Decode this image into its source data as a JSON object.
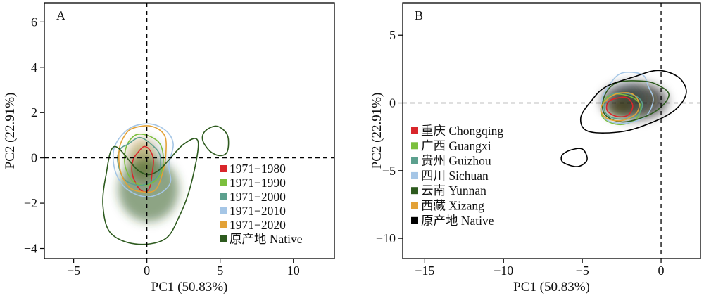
{
  "chart_data": [
    {
      "type": "scatter",
      "panel_label": "A",
      "xlabel": "PC1 (50.83%)",
      "ylabel": "PC2 (22.91%)",
      "xlim": [
        -7,
        12.8
      ],
      "ylim": [
        -4.45,
        6.85
      ],
      "x_ticks": [
        "−5",
        "0",
        "5",
        "10"
      ],
      "x_tick_values": [
        -5,
        0,
        5,
        10
      ],
      "y_ticks": [
        "6",
        "4",
        "2",
        "0",
        "−2",
        "−4"
      ],
      "y_tick_values": [
        6,
        4,
        2,
        0,
        -2,
        -4
      ],
      "reference_lines": {
        "x": 0,
        "y": 0,
        "style": "dashed"
      },
      "legend_position": "bottom-right",
      "series": [
        {
          "name": "1971−1980",
          "color": "#d9262b",
          "contour": [
            [
              -0.2,
              0.5
            ],
            [
              0.2,
              0.35
            ],
            [
              0.45,
              -0.1
            ],
            [
              0.35,
              -0.7
            ],
            [
              0.2,
              -1.3
            ],
            [
              -0.15,
              -1.5
            ],
            [
              -0.6,
              -1.3
            ],
            [
              -1.0,
              -0.7
            ],
            [
              -0.95,
              -0.1
            ],
            [
              -0.6,
              0.25
            ]
          ]
        },
        {
          "name": "1971−1990",
          "color": "#7bbf3d",
          "contour": [
            [
              -0.8,
              1.0
            ],
            [
              0.0,
              1.0
            ],
            [
              0.8,
              0.7
            ],
            [
              1.1,
              0.2
            ],
            [
              1.05,
              -0.5
            ],
            [
              0.6,
              -1.0
            ],
            [
              -0.2,
              -1.2
            ],
            [
              -1.0,
              -1.0
            ],
            [
              -1.5,
              -0.3
            ],
            [
              -1.4,
              0.5
            ]
          ]
        },
        {
          "name": "1971−2000",
          "color": "#5ca08e",
          "contour": [
            [
              -1.3,
              0.6
            ],
            [
              -0.5,
              0.9
            ],
            [
              0.3,
              0.6
            ],
            [
              0.9,
              0.1
            ],
            [
              0.8,
              -0.7
            ],
            [
              0.2,
              -1.1
            ],
            [
              -0.7,
              -1.2
            ],
            [
              -1.6,
              -0.9
            ],
            [
              -2.0,
              -0.1
            ],
            [
              -1.8,
              0.4
            ]
          ]
        },
        {
          "name": "1971−2010",
          "color": "#a5c6e6",
          "contour": [
            [
              -1.2,
              1.3
            ],
            [
              0.2,
              1.5
            ],
            [
              1.3,
              1.2
            ],
            [
              1.8,
              0.6
            ],
            [
              1.5,
              -0.3
            ],
            [
              1.6,
              -1.1
            ],
            [
              0.8,
              -1.6
            ],
            [
              -0.3,
              -1.7
            ],
            [
              -1.5,
              -1.3
            ],
            [
              -2.2,
              -0.5
            ],
            [
              -2.2,
              0.5
            ]
          ]
        },
        {
          "name": "1971−2020",
          "color": "#e3a237",
          "contour": [
            [
              -1.0,
              1.3
            ],
            [
              0.3,
              1.4
            ],
            [
              1.2,
              1.0
            ],
            [
              1.3,
              0.2
            ],
            [
              1.1,
              -0.6
            ],
            [
              0.6,
              -1.4
            ],
            [
              -0.3,
              -1.5
            ],
            [
              -1.2,
              -1.3
            ],
            [
              -1.8,
              -0.6
            ],
            [
              -1.9,
              0.3
            ],
            [
              -1.6,
              0.9
            ]
          ]
        },
        {
          "name": "原产地 Native",
          "color": "#2d5a1e",
          "contour": [
            [
              -2.2,
              0.5
            ],
            [
              -0.5,
              -0.6
            ],
            [
              0.7,
              -0.6
            ],
            [
              2.5,
              0.6
            ],
            [
              3.5,
              0.7
            ],
            [
              3.0,
              -1.2
            ],
            [
              2.2,
              -2.6
            ],
            [
              1.2,
              -3.6
            ],
            [
              -0.8,
              -3.8
            ],
            [
              -2.5,
              -3.3
            ],
            [
              -3.0,
              -2.1
            ],
            [
              -2.8,
              -0.8
            ]
          ],
          "extra_contours": [
            [
              [
                4.0,
                1.2
              ],
              [
                4.8,
                1.4
              ],
              [
                5.5,
                1.0
              ],
              [
                5.5,
                0.3
              ],
              [
                5.0,
                0.1
              ],
              [
                4.3,
                0.3
              ],
              [
                3.8,
                0.8
              ]
            ]
          ]
        }
      ]
    },
    {
      "type": "scatter",
      "panel_label": "B",
      "xlabel": "PC1 (50.83%)",
      "ylabel": "PC2 (22.91%)",
      "xlim": [
        -16.4,
        2.5
      ],
      "ylim": [
        -11.5,
        7.4
      ],
      "x_ticks": [
        "−15",
        "−10",
        "−5",
        "0"
      ],
      "x_tick_values": [
        -15,
        -10,
        -5,
        0
      ],
      "y_ticks": [
        "5",
        "0",
        "−5",
        "−10"
      ],
      "y_tick_values": [
        5,
        0,
        -5,
        -10
      ],
      "reference_lines": {
        "x": 0,
        "y": 0,
        "style": "dashed"
      },
      "legend_position": "left",
      "series": [
        {
          "name": "重庆 Chongqing",
          "color": "#d9262b",
          "contour": [
            [
              -3.0,
              0.3
            ],
            [
              -2.2,
              0.4
            ],
            [
              -1.8,
              -0.2
            ],
            [
              -2.1,
              -0.9
            ],
            [
              -2.8,
              -1.0
            ],
            [
              -3.4,
              -0.6
            ],
            [
              -3.4,
              0.0
            ]
          ]
        },
        {
          "name": "广西 Guangxi",
          "color": "#7bbf3d",
          "contour": [
            [
              -3.2,
              0.6
            ],
            [
              -2.0,
              0.5
            ],
            [
              -1.3,
              -0.2
            ],
            [
              -1.6,
              -1.2
            ],
            [
              -2.6,
              -1.6
            ],
            [
              -3.6,
              -1.2
            ],
            [
              -3.8,
              -0.3
            ]
          ]
        },
        {
          "name": "贵州 Guizhou",
          "color": "#5ca08e",
          "contour": [
            [
              -3.0,
              0.7
            ],
            [
              -1.8,
              0.6
            ],
            [
              -1.2,
              0.0
            ],
            [
              -1.5,
              -0.9
            ],
            [
              -2.5,
              -1.2
            ],
            [
              -3.4,
              -0.9
            ],
            [
              -3.6,
              -0.1
            ]
          ]
        },
        {
          "name": "四川 Sichuan",
          "color": "#a5c6e6",
          "contour": [
            [
              -2.5,
              2.2
            ],
            [
              -1.2,
              2.1
            ],
            [
              -0.8,
              1.2
            ],
            [
              -0.5,
              0.2
            ],
            [
              -1.0,
              -1.0
            ],
            [
              -2.3,
              -1.5
            ],
            [
              -3.5,
              -1.2
            ],
            [
              -3.8,
              0.0
            ],
            [
              -3.3,
              1.3
            ]
          ]
        },
        {
          "name": "云南 Yunnan",
          "color": "#2d5a1e",
          "contour": [
            [
              -2.8,
              1.5
            ],
            [
              -1.0,
              1.6
            ],
            [
              0.0,
              1.2
            ],
            [
              0.5,
              0.6
            ],
            [
              0.0,
              -0.3
            ],
            [
              -1.0,
              -1.0
            ],
            [
              -2.5,
              -1.4
            ],
            [
              -3.6,
              -0.8
            ],
            [
              -3.6,
              0.5
            ]
          ]
        },
        {
          "name": "西藏 Xizang",
          "color": "#e3a237",
          "contour": [
            [
              -3.0,
              0.6
            ],
            [
              -1.9,
              0.7
            ],
            [
              -1.4,
              0.0
            ],
            [
              -1.6,
              -0.8
            ],
            [
              -2.5,
              -1.3
            ],
            [
              -3.5,
              -1.1
            ],
            [
              -3.8,
              -0.3
            ]
          ]
        },
        {
          "name": "原产地 Native",
          "color": "#000000",
          "contour": [
            [
              -3.5,
              1.2
            ],
            [
              -1.8,
              1.9
            ],
            [
              -0.2,
              2.4
            ],
            [
              1.1,
              1.9
            ],
            [
              1.6,
              0.8
            ],
            [
              1.0,
              -0.4
            ],
            [
              -0.3,
              -1.3
            ],
            [
              -2.4,
              -2.1
            ],
            [
              -4.6,
              -2.1
            ],
            [
              -5.1,
              -1.1
            ],
            [
              -4.4,
              0.2
            ]
          ],
          "extra_contours": [
            [
              [
                -5.8,
                -3.5
              ],
              [
                -5.0,
                -3.4
              ],
              [
                -4.7,
                -4.2
              ],
              [
                -5.3,
                -4.7
              ],
              [
                -6.2,
                -4.4
              ],
              [
                -6.3,
                -3.9
              ]
            ]
          ]
        }
      ]
    }
  ]
}
